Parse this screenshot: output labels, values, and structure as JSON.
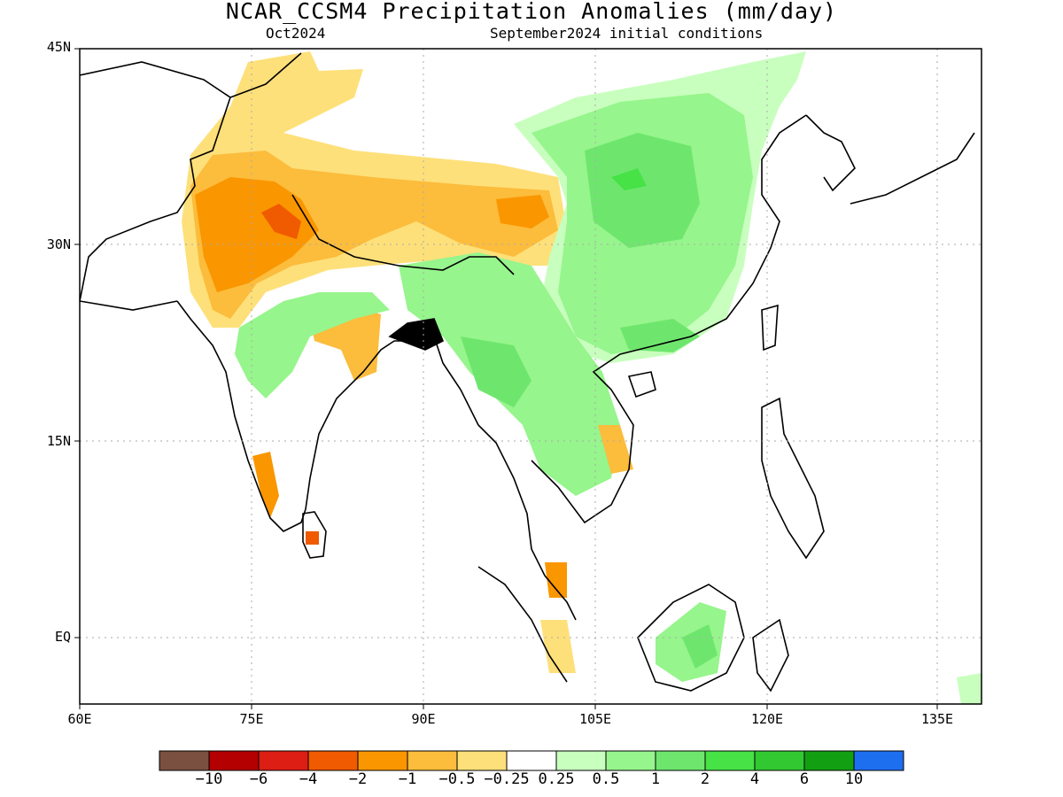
{
  "title": "NCAR_CCSM4 Precipitation Anomalies (mm/day)",
  "subtitle_left": "Oct2024",
  "subtitle_right": "September2024 initial conditions",
  "lat_labels": [
    "45N",
    "30N",
    "15N",
    "EQ"
  ],
  "lon_labels": [
    "60E",
    "75E",
    "90E",
    "105E",
    "120E",
    "135E"
  ],
  "legend": {
    "colors": [
      "#7a5040",
      "#b40000",
      "#dc1e14",
      "#f05a00",
      "#fa9600",
      "#fcbc3c",
      "#fee07a",
      "#ffffff",
      "#c8ffbe",
      "#96f58c",
      "#6ee66e",
      "#46e246",
      "#32c832",
      "#12a012",
      "#1e6ef0"
    ],
    "labels": [
      "−10",
      "−6",
      "−4",
      "−2",
      "−1",
      "−0.5",
      "−0.25",
      "0.25",
      "0.5",
      "1",
      "2",
      "4",
      "6",
      "10"
    ]
  }
}
